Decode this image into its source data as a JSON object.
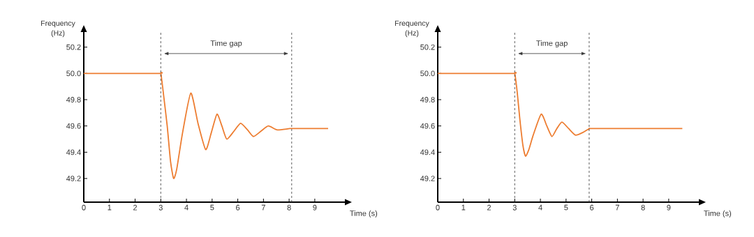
{
  "chart_data": [
    {
      "type": "line",
      "xlabel": "Time (s)",
      "ylabel": "Frequency (Hz)",
      "xlim": [
        0,
        10.2
      ],
      "ylim": [
        49.02,
        50.32
      ],
      "xticks": [
        0,
        1,
        2,
        3,
        4,
        5,
        6,
        7,
        8,
        9
      ],
      "yticks": [
        49.2,
        49.4,
        49.6,
        49.8,
        {
          "value": 50.0,
          "label": "50.0"
        },
        50.2
      ],
      "color": "#ed7d31",
      "x": [
        0,
        2.9,
        3,
        3.1,
        3.25,
        3.38,
        3.5,
        3.62,
        3.85,
        4.17,
        4.45,
        4.75,
        4.97,
        5.19,
        5.38,
        5.57,
        5.85,
        6.11,
        6.38,
        6.61,
        6.9,
        7.19,
        7.54,
        8.02,
        8.2,
        9.52
      ],
      "values": [
        50.0,
        50.0,
        50.0,
        49.85,
        49.6,
        49.33,
        49.2,
        49.27,
        49.55,
        49.85,
        49.62,
        49.42,
        49.55,
        49.69,
        49.6,
        49.5,
        49.56,
        49.62,
        49.57,
        49.52,
        49.56,
        49.6,
        49.57,
        49.58,
        49.58,
        49.58
      ],
      "ref_lines": [
        {
          "axis": "x",
          "value": 3,
          "line_style": "dashed"
        },
        {
          "axis": "x",
          "value": 8.1,
          "line_style": "dashed"
        }
      ],
      "annotations": [
        "Time gap"
      ]
    },
    {
      "type": "line",
      "xlabel": "Time (s)",
      "ylabel": "Frequency (Hz)",
      "xlim": [
        0,
        10.2
      ],
      "ylim": [
        49.02,
        50.32
      ],
      "xticks": [
        0,
        1,
        2,
        3,
        4,
        5,
        6,
        7,
        8,
        9
      ],
      "yticks": [
        49.2,
        49.4,
        49.6,
        49.8,
        {
          "value": 50.0,
          "label": "50.0"
        },
        50.2
      ],
      "color": "#ed7d31",
      "x": [
        0,
        2.9,
        3,
        3.1,
        3.2,
        3.32,
        3.42,
        3.55,
        3.72,
        4.03,
        4.25,
        4.45,
        4.64,
        4.84,
        5.1,
        5.37,
        5.65,
        5.92,
        6.1,
        9.53
      ],
      "values": [
        50.0,
        50.0,
        50.0,
        49.85,
        49.65,
        49.45,
        49.37,
        49.42,
        49.53,
        49.69,
        49.6,
        49.52,
        49.58,
        49.63,
        49.58,
        49.53,
        49.55,
        49.58,
        49.58,
        49.58
      ],
      "ref_lines": [
        {
          "axis": "x",
          "value": 3,
          "line_style": "dashed"
        },
        {
          "axis": "x",
          "value": 5.9,
          "line_style": "dashed"
        }
      ],
      "annotations": [
        "Time gap"
      ]
    }
  ]
}
